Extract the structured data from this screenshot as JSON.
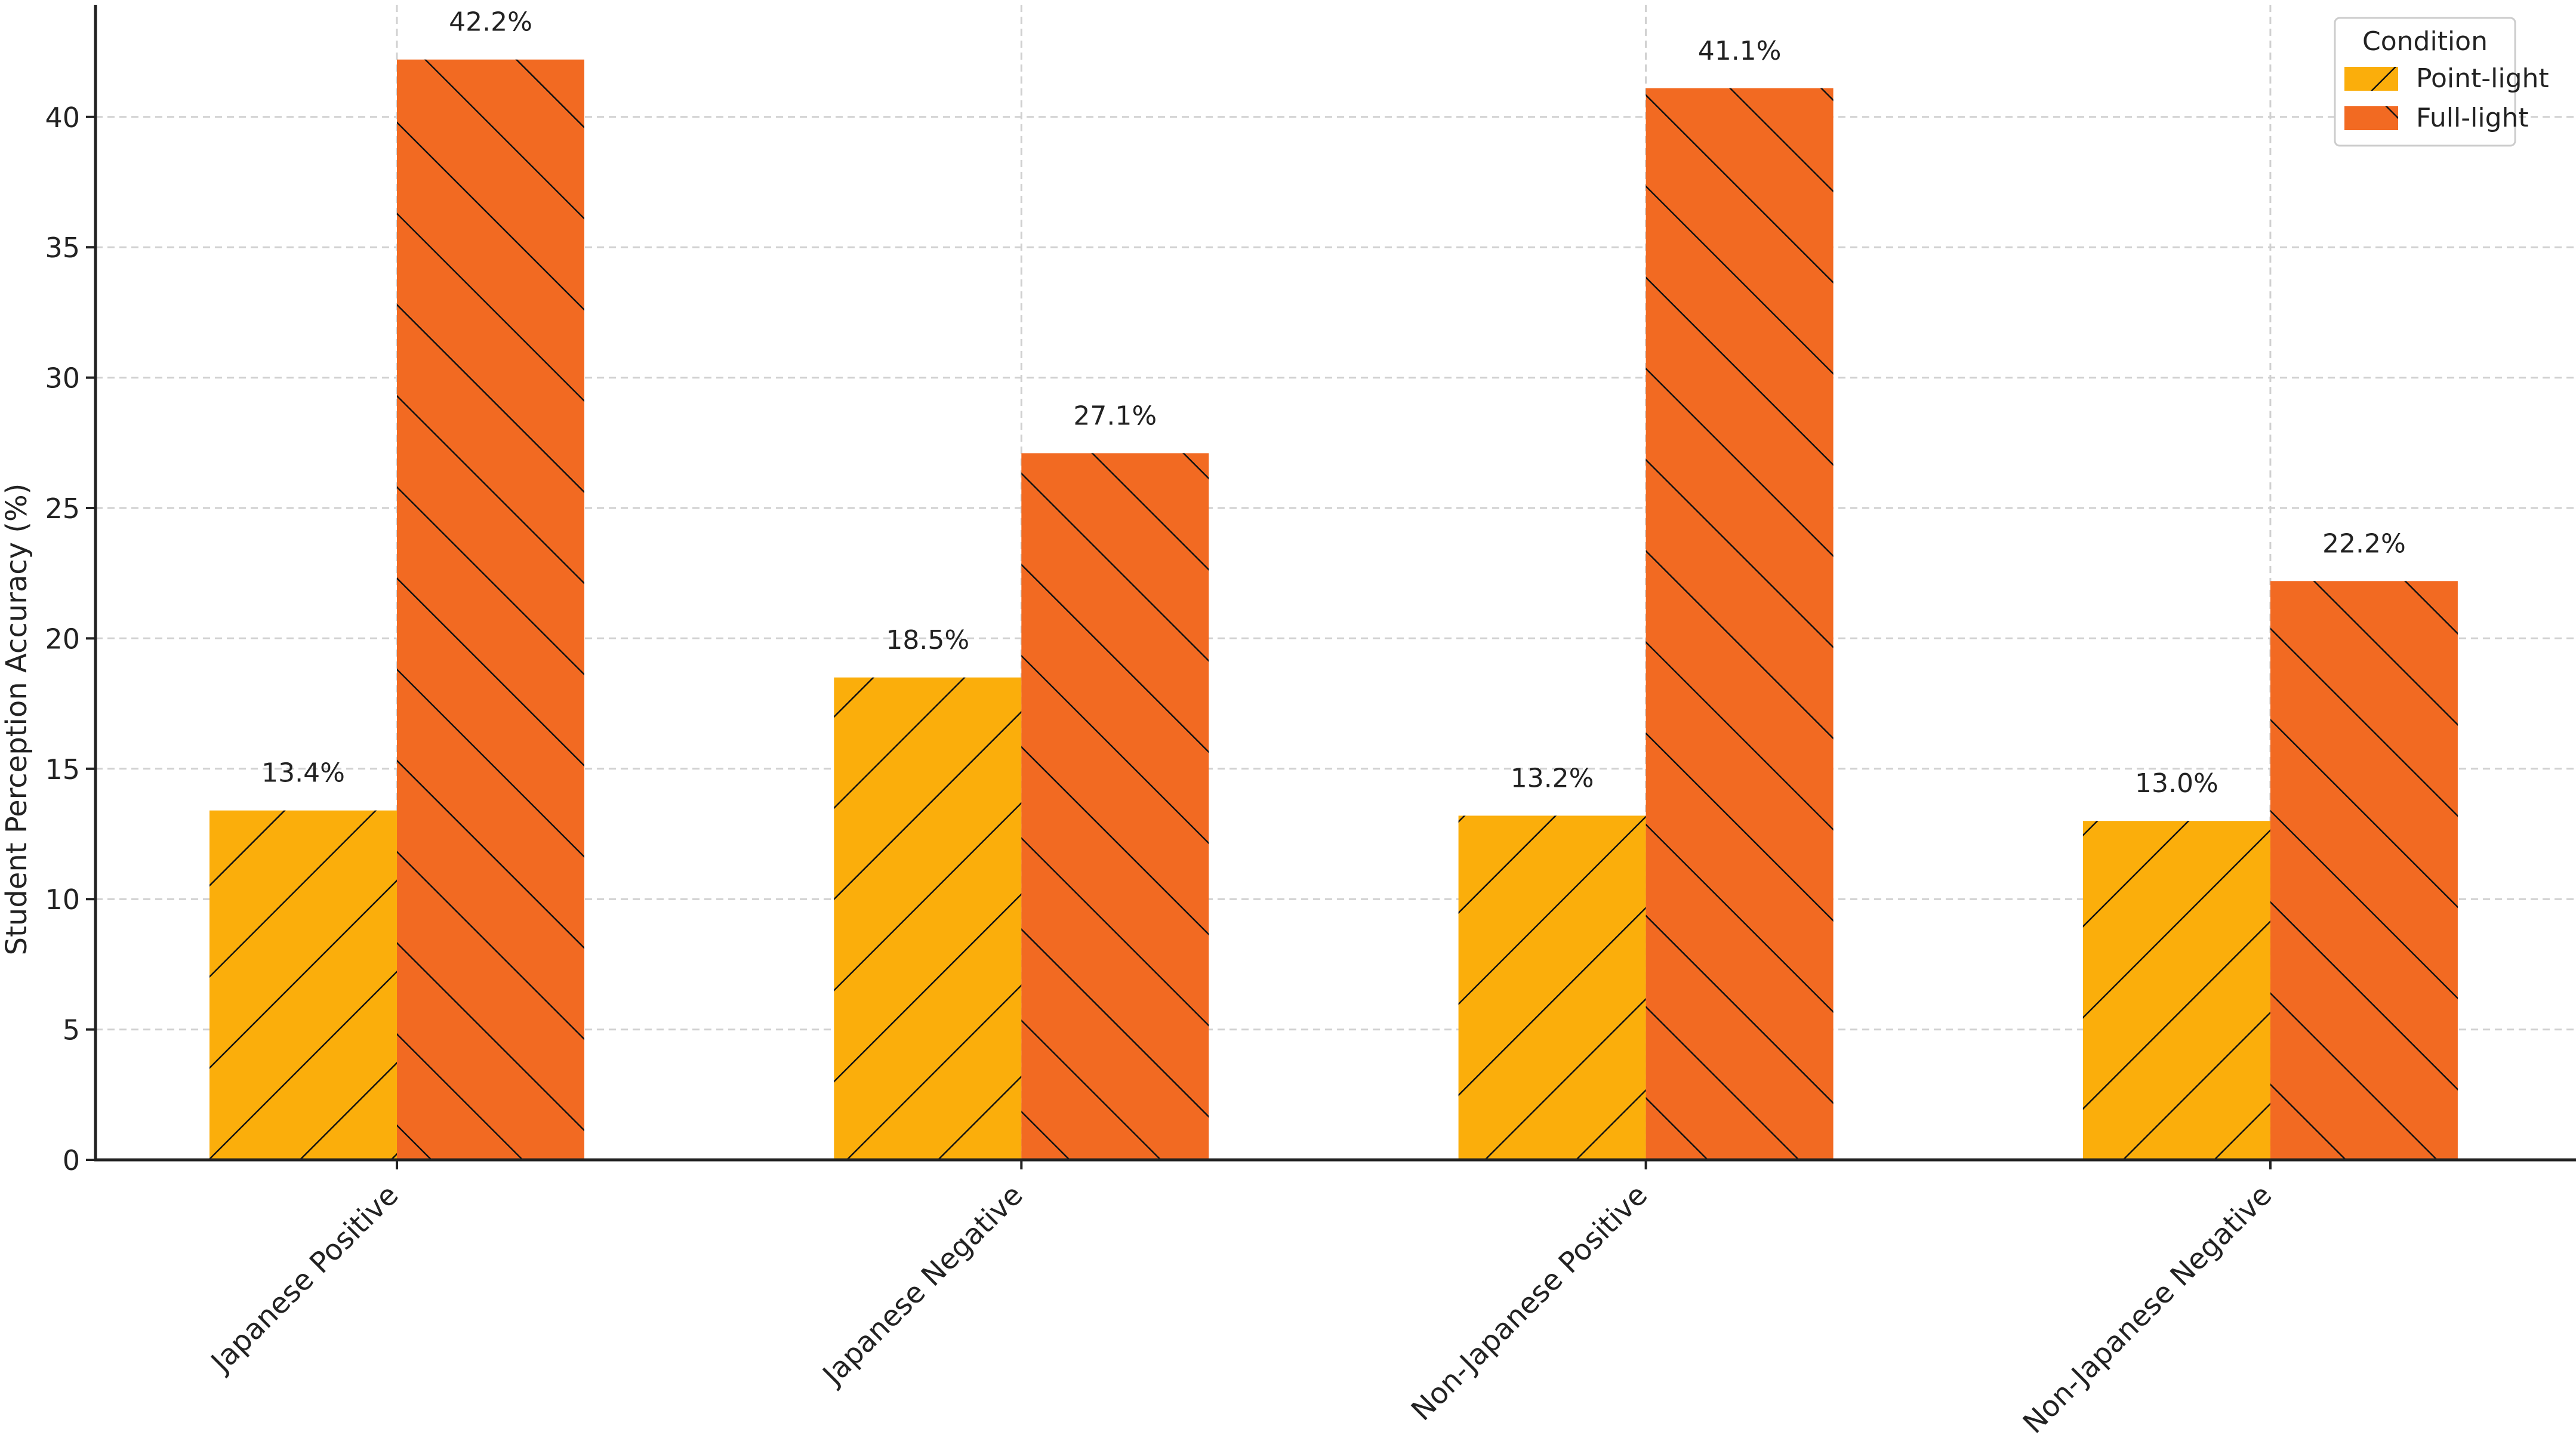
{
  "chart_data": {
    "type": "bar",
    "title": "",
    "xlabel": "",
    "ylabel": "Student Perception Accuracy (%)",
    "ylim": [
      0,
      44.3
    ],
    "yticks": [
      0,
      5,
      10,
      15,
      20,
      25,
      30,
      35,
      40
    ],
    "grid": true,
    "legend_position": "top-right",
    "legend_title": "Condition",
    "categories": [
      "Japanese Positive",
      "Japanese Negative",
      "Non-Japanese Positive",
      "Non-Japanese Negative"
    ],
    "series": [
      {
        "name": "Point-light",
        "color": "#FBAE0B",
        "hatch": "forward-diagonal",
        "values": [
          13.4,
          18.5,
          13.2,
          13.0
        ],
        "labels": [
          "13.4%",
          "18.5%",
          "13.2%",
          "13.0%"
        ]
      },
      {
        "name": "Full-light",
        "color": "#F26A22",
        "hatch": "back-diagonal",
        "values": [
          42.2,
          27.1,
          41.1,
          22.2
        ],
        "labels": [
          "42.2%",
          "27.1%",
          "41.1%",
          "22.2%"
        ]
      }
    ]
  }
}
